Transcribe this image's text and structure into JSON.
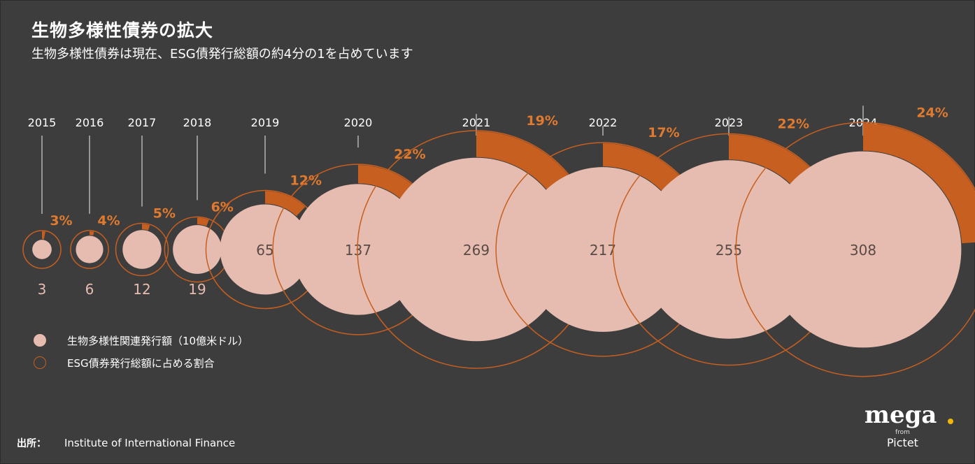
{
  "header": {
    "title": "生物多様性債券の拡大",
    "subtitle": "生物多様性債券は現在、ESG債発行総額の約4分の1を占めています"
  },
  "chart_data": {
    "type": "bubble-donut",
    "series": [
      {
        "name": "生物多様性関連発行額（10億米ドル）",
        "values": [
          3,
          6,
          12,
          19,
          65,
          137,
          269,
          217,
          255,
          308
        ]
      },
      {
        "name": "ESG債券発行総額に占める割合",
        "values": [
          3,
          4,
          5,
          6,
          12,
          22,
          19,
          17,
          22,
          24
        ]
      }
    ],
    "categories": [
      "2015",
      "2016",
      "2017",
      "2018",
      "2019",
      "2020",
      "2021",
      "2022",
      "2023",
      "2024"
    ],
    "points": [
      {
        "year": "2015",
        "amount": 3,
        "amount_label": "3",
        "share": 3,
        "share_label": "3%"
      },
      {
        "year": "2016",
        "amount": 6,
        "amount_label": "6",
        "share": 4,
        "share_label": "4%"
      },
      {
        "year": "2017",
        "amount": 12,
        "amount_label": "12",
        "share": 5,
        "share_label": "5%"
      },
      {
        "year": "2018",
        "amount": 19,
        "amount_label": "19",
        "share": 6,
        "share_label": "6%"
      },
      {
        "year": "2019",
        "amount": 65,
        "amount_label": "65",
        "share": 12,
        "share_label": "12%"
      },
      {
        "year": "2020",
        "amount": 137,
        "amount_label": "137",
        "share": 22,
        "share_label": "22%"
      },
      {
        "year": "2021",
        "amount": 269,
        "amount_label": "269",
        "share": 19,
        "share_label": "19%"
      },
      {
        "year": "2022",
        "amount": 217,
        "amount_label": "217",
        "share": 17,
        "share_label": "17%"
      },
      {
        "year": "2023",
        "amount": 255,
        "amount_label": "255",
        "share": 22,
        "share_label": "22%"
      },
      {
        "year": "2024",
        "amount": 308,
        "amount_label": "308",
        "share": 24,
        "share_label": "24%"
      }
    ]
  },
  "legend": {
    "amount_label": "生物多様性関連発行額（10億米ドル）",
    "share_label": "ESG債券発行総額に占める割合"
  },
  "source": {
    "label": "出所：",
    "text": "Institute of International Finance"
  },
  "logo": {
    "word": "mega",
    "from": "from",
    "brand": "Pictet"
  },
  "colors": {
    "background": "#3d3d3d",
    "bubble": "#e6bcb0",
    "accent": "#c65f20",
    "ring_track": "#3a3a3a",
    "share_text": "#e07a2e",
    "logo_dot": "#f2b705"
  }
}
